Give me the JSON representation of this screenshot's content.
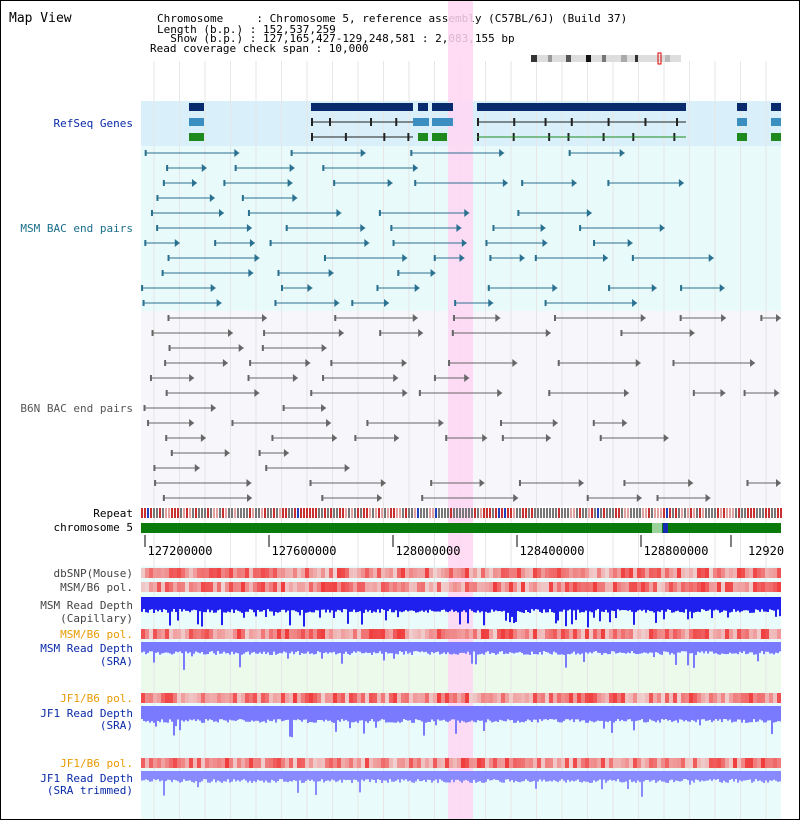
{
  "view_title": "Map View",
  "info": {
    "line1": "Chromosome     : Chromosome 5, reference assembly (C57BL/6J) (Build 37)",
    "line2": "Length (b.p.) : 152,537,259",
    "line3": "  Show (b.p.) : 127,165,427-129,248,581 : 2,083,155 bp",
    "line4": "Read coverage check span : 10,000"
  },
  "tracks": {
    "refseq": "RefSeq Genes",
    "msm_bac": "MSM BAC end pairs",
    "b6n_bac": "B6N BAC end pairs",
    "repeat": "Repeat",
    "chromosome": "chromosome 5",
    "dbsnp": "dbSNP(Mouse)",
    "msm_b6_pol_1": "MSM/B6 pol.",
    "msm_depth_cap_1": "MSM Read Depth",
    "msm_depth_cap_2": "(Capillary)",
    "msm_b6_pol_2": "MSM/B6 pol.",
    "msm_depth_sra_1": "MSM Read Depth",
    "msm_depth_sra_2": "(SRA)",
    "jf1_b6_pol_1": "JF1/B6 pol.",
    "jf1_depth_sra_1": "JF1 Read Depth",
    "jf1_depth_sra_2": "(SRA)",
    "jf1_b6_pol_2": "JF1/B6 pol.",
    "jf1_depth_trim_1": "JF1 Read Depth",
    "jf1_depth_trim_2": "(SRA trimmed)"
  },
  "ruler": {
    "ticks": [
      "127200000",
      "127600000",
      "128000000",
      "128400000",
      "128800000",
      "12920"
    ]
  },
  "colors": {
    "gene_dark": "#0a2a6e",
    "gene_mid": "#3a8fc0",
    "gene_green": "#1e8a1e",
    "msm_bac": "#2a7090",
    "b6n_bac": "#666666",
    "highlight": "#ffd6f2",
    "track_bg": "#e8fafa",
    "chromosome": "#0a7a0a",
    "depth_blue": "#2020ee",
    "depth_light": "#7a7aff",
    "label_blue": "#0a2aa8",
    "label_orange": "#e89a00",
    "label_teal": "#1a6e8a"
  }
}
